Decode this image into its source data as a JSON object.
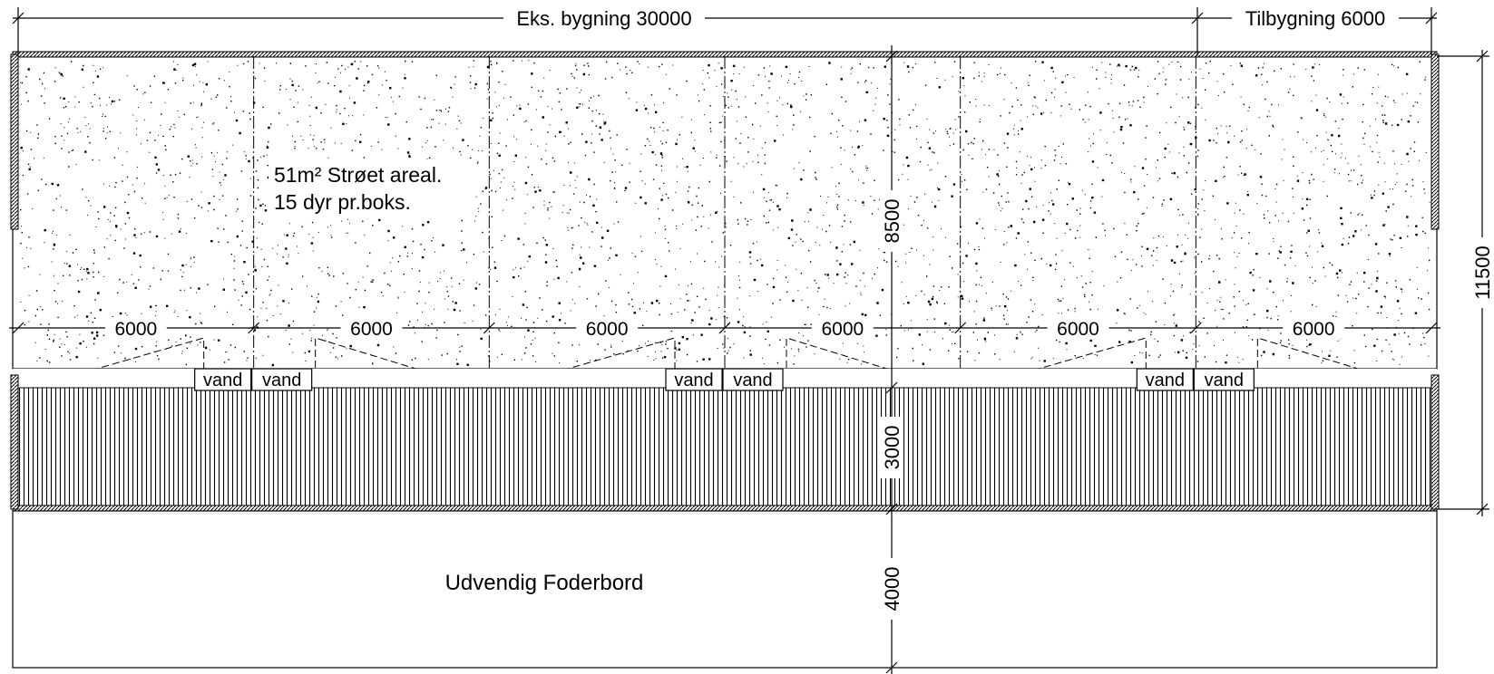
{
  "drawing": {
    "top_dims": {
      "existing": "Eks. bygning 30000",
      "extension": "Tilbygning 6000"
    },
    "right_dim": "11500",
    "center_dims": {
      "bedding_depth": "8500",
      "feed_alley": "3000",
      "outdoor_table": "4000"
    },
    "bay_widths": [
      "6000",
      "6000",
      "6000",
      "6000",
      "6000",
      "6000"
    ],
    "water_labels": [
      "vand",
      "vand",
      "vand",
      "vand",
      "vand",
      "vand"
    ],
    "area_note": {
      "line1": "51m² Strøet areal.",
      "line2": "15 dyr pr.boks."
    },
    "outdoor_label": "Udvendig Foderbord"
  }
}
